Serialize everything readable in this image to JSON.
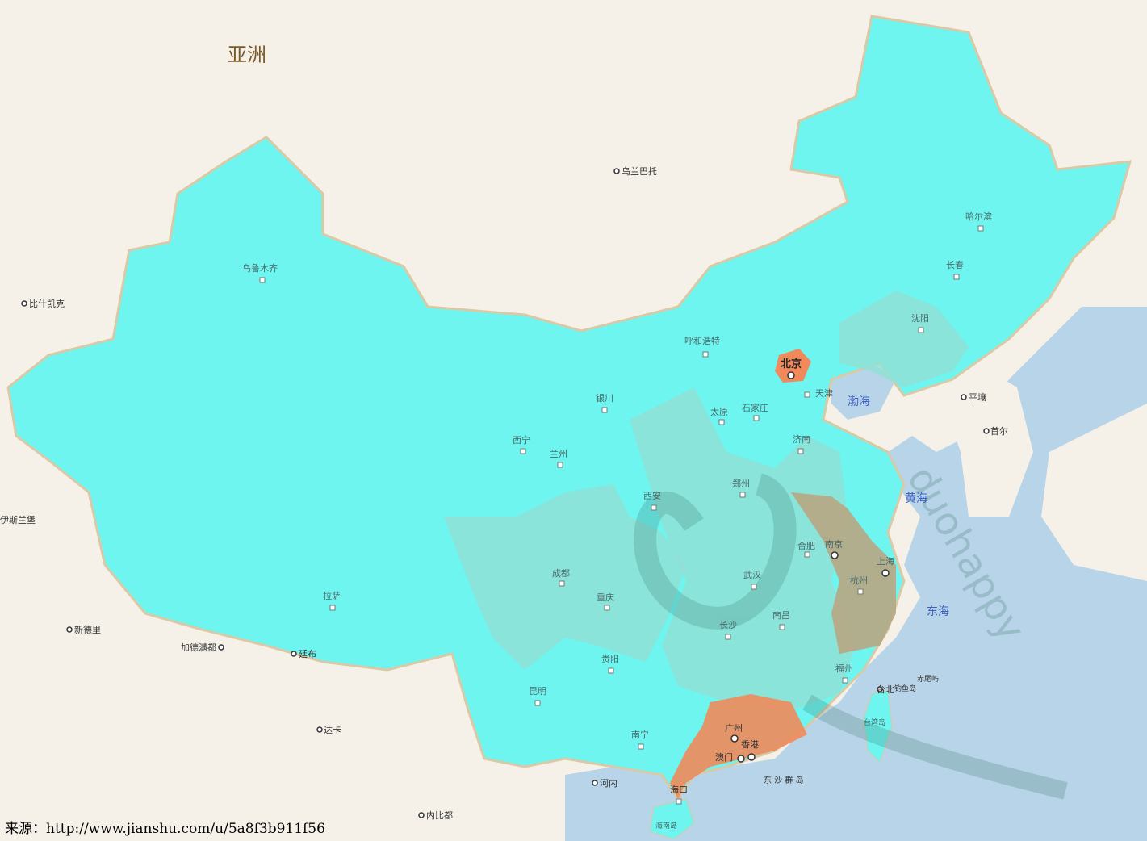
{
  "continent_label": "亚洲",
  "seas": {
    "bohai": "渤海",
    "yellow": "黄海",
    "east": "东海"
  },
  "cities": {
    "urumqi": "乌鲁木齐",
    "kashgar": "比什凯克",
    "ulaanbaatar": "乌兰巴托",
    "hohhot": "呼和浩特",
    "harbin": "哈尔滨",
    "changchun": "长春",
    "shenyang": "沈阳",
    "beijing": "北京",
    "tianjin": "天津",
    "pyongyang": "平壤",
    "seoul": "首尔",
    "yinchuan": "银川",
    "shijiazhuang": "石家庄",
    "taiyuan": "太原",
    "jinan": "济南",
    "xining": "西宁",
    "lanzhou": "兰州",
    "zhengzhou": "郑州",
    "xian": "西安",
    "hefei": "合肥",
    "nanjing": "南京",
    "shanghai": "上海",
    "chengdu": "成都",
    "wuhan": "武汉",
    "hangzhou": "杭州",
    "chongqing": "重庆",
    "lhasa": "拉萨",
    "changsha": "长沙",
    "nanchang": "南昌",
    "guiyang": "贵阳",
    "fuzhou": "福州",
    "taipei": "台北",
    "kunming": "昆明",
    "nanning": "南宁",
    "guangzhou": "广州",
    "hongkong": "香港",
    "macau": "澳门",
    "haikou": "海口",
    "hanoi": "河内",
    "naypyidaw": "内比都",
    "newdelhi": "新德里",
    "kathmandu": "加德满都",
    "thimphu": "廷布",
    "dhaka": "达卡",
    "islamabad": "伊斯兰堡"
  },
  "islands": {
    "diaoyu": "钓鱼岛",
    "chiwei": "赤尾屿",
    "taiwan": "台湾岛",
    "hainan": "海南岛",
    "dongsha": "东 沙 群 岛"
  },
  "watermark": "duohappy",
  "source_text": "来源：http://www.jianshu.com/u/5a8f3b911f56",
  "colors": {
    "cyan": "#6ef5f0",
    "teal": "#8fe0d6",
    "orange": "#f08a5a",
    "khaki": "#b8a682",
    "ocean": "#b8d4e8",
    "land": "#f5f1e8"
  }
}
